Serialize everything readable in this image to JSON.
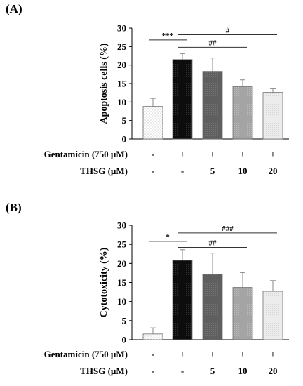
{
  "chart_data": [
    {
      "type": "bar",
      "panel_label": "(A)",
      "ylabel": "Apoptosis cells (%)",
      "ylim": [
        0,
        30
      ],
      "yticks": [
        0,
        5,
        10,
        15,
        20,
        25,
        30
      ],
      "values": [
        8.8,
        21.5,
        18.3,
        14.2,
        12.6
      ],
      "errors": [
        2.2,
        1.6,
        3.6,
        1.8,
        1.0
      ],
      "bar_colors": [
        "#ffffff",
        "#111111",
        "#666666",
        "#a8a8a8",
        "#ececec"
      ],
      "row_labels": [
        "Gentamicin (750 µM)",
        "THSG (µM)"
      ],
      "conditions": [
        {
          "gentamicin": "-",
          "thsg": "-"
        },
        {
          "gentamicin": "+",
          "thsg": "-"
        },
        {
          "gentamicin": "+",
          "thsg": "5"
        },
        {
          "gentamicin": "+",
          "thsg": "10"
        },
        {
          "gentamicin": "+",
          "thsg": "20"
        }
      ],
      "significance": [
        {
          "from": 0,
          "to": 1,
          "label": "***",
          "level": 26.8
        },
        {
          "from": 1,
          "to": 3,
          "label": "##",
          "level": 24.8
        },
        {
          "from": 1,
          "to": 4,
          "label": "#",
          "level": 28.2
        }
      ]
    },
    {
      "type": "bar",
      "panel_label": "(B)",
      "ylabel": "Cytotoxicity (%)",
      "ylim": [
        0,
        30
      ],
      "yticks": [
        0,
        5,
        10,
        15,
        20,
        25,
        30
      ],
      "values": [
        1.5,
        20.8,
        17.2,
        13.7,
        12.7
      ],
      "errors": [
        1.6,
        2.8,
        5.5,
        3.9,
        2.8
      ],
      "bar_colors": [
        "#ffffff",
        "#111111",
        "#666666",
        "#a8a8a8",
        "#ececec"
      ],
      "row_labels": [
        "Gentamicin (750 µM)",
        "THSG (µM)"
      ],
      "conditions": [
        {
          "gentamicin": "-",
          "thsg": "-"
        },
        {
          "gentamicin": "+",
          "thsg": "-"
        },
        {
          "gentamicin": "+",
          "thsg": "5"
        },
        {
          "gentamicin": "+",
          "thsg": "10"
        },
        {
          "gentamicin": "+",
          "thsg": "20"
        }
      ],
      "significance": [
        {
          "from": 0,
          "to": 1,
          "label": "*",
          "level": 25.8
        },
        {
          "from": 1,
          "to": 3,
          "label": "##",
          "level": 24.2
        },
        {
          "from": 1,
          "to": 4,
          "label": "###",
          "level": 28.0
        }
      ]
    }
  ]
}
